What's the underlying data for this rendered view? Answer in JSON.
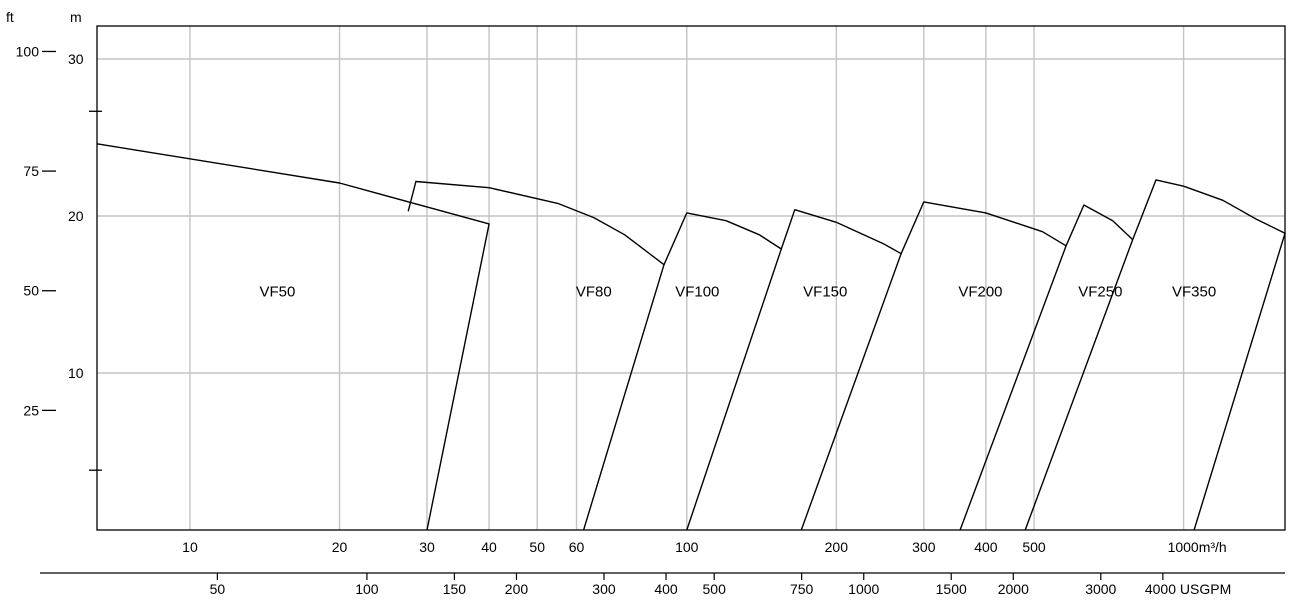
{
  "chart_data": {
    "type": "area",
    "xscale": "log",
    "x_unit": "m³/h",
    "x_unit_alt": "USGPM",
    "y_unit_left": "ft",
    "y_unit_right": "m",
    "xlim": [
      6.5,
      1600
    ],
    "ylim": [
      0,
      32
    ],
    "grid": true,
    "x_ticks_m3h": [
      {
        "v": 10,
        "label": "10"
      },
      {
        "v": 20,
        "label": "20"
      },
      {
        "v": 30,
        "label": "30"
      },
      {
        "v": 40,
        "label": "40"
      },
      {
        "v": 50,
        "label": "50"
      },
      {
        "v": 60,
        "label": "60"
      },
      {
        "v": 100,
        "label": "100"
      },
      {
        "v": 200,
        "label": "200"
      },
      {
        "v": 300,
        "label": "300"
      },
      {
        "v": 400,
        "label": "400"
      },
      {
        "v": 500,
        "label": "500"
      },
      {
        "v": 1000,
        "label": "1000m³/h"
      }
    ],
    "x_ticks_usgpm": [
      {
        "v": 50,
        "label": "50"
      },
      {
        "v": 100,
        "label": "100"
      },
      {
        "v": 150,
        "label": "150"
      },
      {
        "v": 200,
        "label": "200"
      },
      {
        "v": 300,
        "label": "300"
      },
      {
        "v": 400,
        "label": "400"
      },
      {
        "v": 500,
        "label": "500"
      },
      {
        "v": 750,
        "label": "750"
      },
      {
        "v": 1000,
        "label": "1000"
      },
      {
        "v": 1500,
        "label": "1500"
      },
      {
        "v": 2000,
        "label": "2000"
      },
      {
        "v": 3000,
        "label": "3000"
      },
      {
        "v": 4000,
        "label": "4000 USGPM"
      }
    ],
    "y_ticks_m": [
      {
        "v": 10,
        "label": "10"
      },
      {
        "v": 20,
        "label": "20"
      },
      {
        "v": 30,
        "label": "30"
      }
    ],
    "y_ticks_ft": [
      {
        "v": 25,
        "label": "25"
      },
      {
        "v": 50,
        "label": "50"
      },
      {
        "v": 75,
        "label": "75"
      },
      {
        "v": 100,
        "label": "100"
      }
    ],
    "y_minor_ticks_ft": [
      12.5,
      87.5
    ],
    "series": [
      {
        "name": "VF50",
        "label_at": [
          15,
          15.2
        ],
        "outline": [
          [
            6.5,
            24.6
          ],
          [
            20,
            22.1
          ],
          [
            40,
            19.5
          ],
          [
            30,
            0
          ]
        ]
      },
      {
        "name": "VF80",
        "label_at": [
          65,
          15.2
        ],
        "outline": [
          [
            27.5,
            20.3
          ],
          [
            28.5,
            22.2
          ],
          [
            40,
            21.8
          ],
          [
            55,
            20.8
          ],
          [
            65,
            19.9
          ],
          [
            75,
            18.8
          ],
          [
            90,
            16.9
          ],
          [
            62,
            0
          ]
        ]
      },
      {
        "name": "VF100",
        "label_at": [
          105,
          15.2
        ],
        "outline": [
          [
            90,
            16.9
          ],
          [
            100,
            20.2
          ],
          [
            120,
            19.7
          ],
          [
            140,
            18.8
          ],
          [
            155,
            17.9
          ],
          [
            100,
            0
          ]
        ]
      },
      {
        "name": "VF150",
        "label_at": [
          190,
          15.2
        ],
        "outline": [
          [
            155,
            17.9
          ],
          [
            165,
            20.4
          ],
          [
            200,
            19.6
          ],
          [
            250,
            18.2
          ],
          [
            270,
            17.6
          ],
          [
            170,
            0
          ]
        ]
      },
      {
        "name": "VF200",
        "label_at": [
          390,
          15.2
        ],
        "outline": [
          [
            270,
            17.6
          ],
          [
            300,
            20.9
          ],
          [
            400,
            20.2
          ],
          [
            520,
            19.0
          ],
          [
            580,
            18.1
          ],
          [
            355,
            0
          ]
        ]
      },
      {
        "name": "VF250",
        "label_at": [
          680,
          15.2
        ],
        "outline": [
          [
            580,
            18.1
          ],
          [
            630,
            20.7
          ],
          [
            720,
            19.7
          ],
          [
            790,
            18.5
          ],
          [
            480,
            0
          ]
        ]
      },
      {
        "name": "VF350",
        "label_at": [
          1050,
          15.2
        ],
        "outline": [
          [
            790,
            18.5
          ],
          [
            880,
            22.3
          ],
          [
            1000,
            21.9
          ],
          [
            1200,
            21.0
          ],
          [
            1400,
            19.8
          ],
          [
            1600,
            18.9
          ],
          [
            1050,
            0
          ]
        ]
      }
    ]
  }
}
